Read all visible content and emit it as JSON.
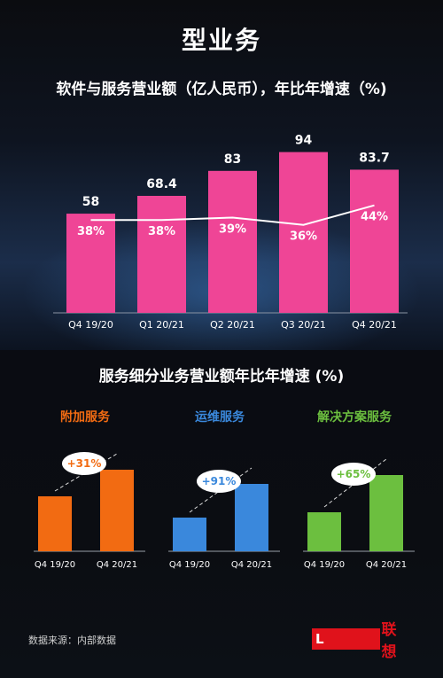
{
  "page": {
    "main_title": "型业务",
    "top_chart_title": "软件与服务营业额（亿人民币），年比年增速（%)",
    "bottom_title": "服务细分业务营业额年比年增速 (%)",
    "source": "数据来源：内部数据",
    "logo_box_text": "L",
    "logo_text": "联想"
  },
  "chart_data": [
    {
      "type": "bar",
      "title": "软件与服务营业额（亿人民币），年比年增速（%)",
      "categories": [
        "Q4 19/20",
        "Q1 20/21",
        "Q2 20/21",
        "Q3 20/21",
        "Q4 20/21"
      ],
      "series": [
        {
          "type": "bar",
          "values": [
            58,
            68.4,
            83,
            94,
            83.7
          ],
          "value_labels": [
            "58",
            "68.4",
            "83",
            "94",
            "83.7"
          ],
          "color": "#ef4596"
        },
        {
          "type": "line",
          "values": [
            38,
            38,
            39,
            36,
            44
          ],
          "value_labels": [
            "38%",
            "38%",
            "39%",
            "36%",
            "44%"
          ],
          "color": "#ffffff"
        }
      ],
      "ylim": [
        0,
        100
      ],
      "line_ylim": [
        0,
        70
      ],
      "grid": false
    },
    {
      "type": "bar",
      "title": "附加服务",
      "categories": [
        "Q4 19/20",
        "Q4 20/21"
      ],
      "values": [
        62,
        92
      ],
      "growth_label": "+31%",
      "color": "#f26b12",
      "title_color": "#f26b12",
      "ylim": [
        0,
        100
      ]
    },
    {
      "type": "bar",
      "title": "运维服务",
      "categories": [
        "Q4 19/20",
        "Q4 20/21"
      ],
      "values": [
        38,
        76
      ],
      "growth_label": "+91%",
      "color": "#3a88dc",
      "title_color": "#3a88dc",
      "ylim": [
        0,
        100
      ]
    },
    {
      "type": "bar",
      "title": "解决方案服务",
      "categories": [
        "Q4 19/20",
        "Q4 20/21"
      ],
      "values": [
        44,
        86
      ],
      "growth_label": "+65%",
      "color": "#6cbf3f",
      "title_color": "#6cbf3f",
      "ylim": [
        0,
        100
      ]
    }
  ]
}
